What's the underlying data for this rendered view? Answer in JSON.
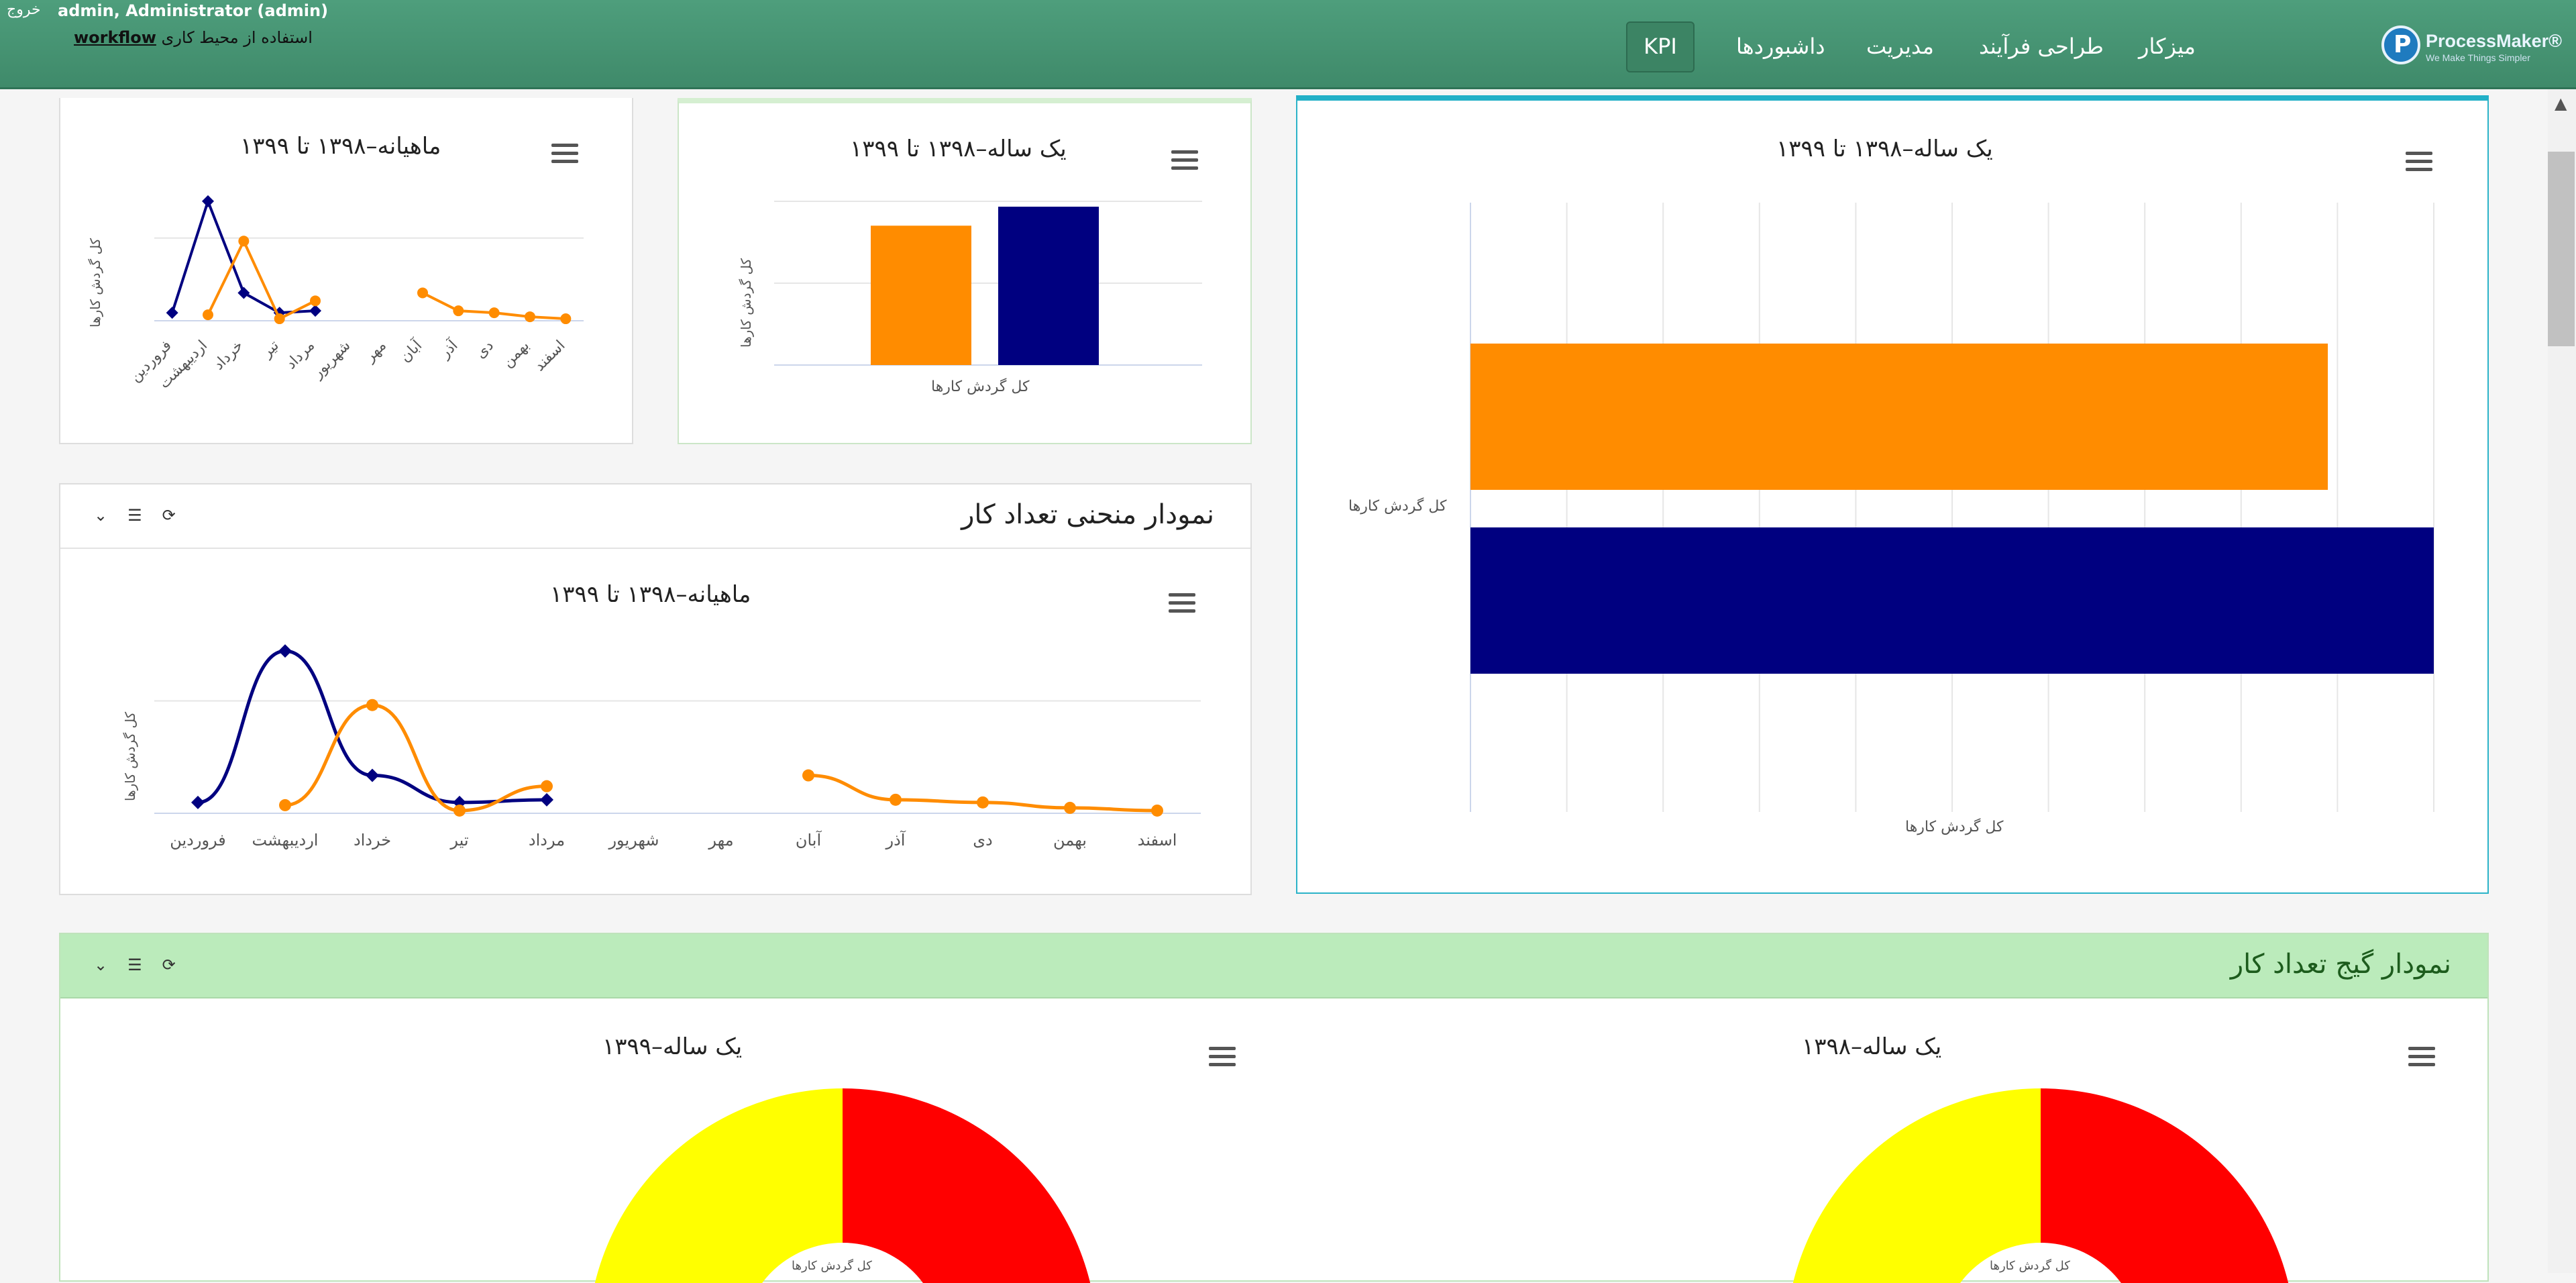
{
  "header": {
    "logo_text": "ProcessMaker®",
    "logo_tagline": "We Make Things Simpler",
    "nav": [
      "میزکار",
      "طراحی فرآیند",
      "مدیریت",
      "داشبوردها",
      "KPI"
    ],
    "logout": "خروج",
    "user": "admin, Administrator (admin)",
    "workspace_prefix": "استفاده از محیط کاری",
    "workspace": "workflow"
  },
  "panels": {
    "small_line": {
      "title": "ماهیانه–۱۳۹۸ تا ۱۳۹۹",
      "ylabel": "کل گردش کارها"
    },
    "small_bar": {
      "title": "یک ساله–۱۳۹۸ تا ۱۳۹۹",
      "ylabel": "کل گردش کارها",
      "xlabel": "کل گردش کارها"
    },
    "big_hbar": {
      "title": "یک ساله–۱۳۹۸ تا ۱۳۹۹",
      "ylabel": "کل گردش کارها",
      "xlabel": "کل گردش کارها"
    },
    "curve_panel": {
      "heading": "نمودار منحنی تعداد کار",
      "title": "ماهیانه–۱۳۹۸ تا ۱۳۹۹",
      "ylabel": "کل گردش کارها"
    },
    "gauge_panel": {
      "heading": "نمودار گیج تعداد کار",
      "left_title": "یک ساله–۱۳۹۹",
      "right_title": "یک ساله–۱۳۹۸",
      "gauge_label": "کل گردش کارها"
    }
  },
  "chart_data": [
    {
      "type": "line",
      "categories": [
        "فروردین",
        "اردیبهشت",
        "خرداد",
        "تیر",
        "مرداد",
        "شهریور",
        "مهر",
        "آبان",
        "آذر",
        "دی",
        "بهمن",
        "اسفند"
      ],
      "series": [
        {
          "color": "#000080",
          "values": [
            2,
            30,
            7,
            2,
            2.5,
            null,
            null,
            null,
            null,
            null,
            null,
            null
          ]
        },
        {
          "color": "#ff8c00",
          "values": [
            null,
            1.5,
            20,
            0.5,
            5,
            null,
            null,
            7,
            2.5,
            2,
            1,
            0.5
          ]
        }
      ],
      "ylabel": "کل گردش کارها"
    },
    {
      "type": "bar",
      "categories": [
        "کل گردش کارها"
      ],
      "series": [
        {
          "color": "#ff8c00",
          "values": [
            88
          ]
        },
        {
          "color": "#000080",
          "values": [
            100
          ]
        }
      ],
      "ylabel": "کل گردش کارها"
    },
    {
      "type": "bar",
      "orientation": "horizontal",
      "categories": [
        "کل گردش کارها"
      ],
      "series": [
        {
          "color": "#ff8c00",
          "values": [
            89
          ]
        },
        {
          "color": "#000080",
          "values": [
            100
          ]
        }
      ],
      "xlabel": "کل گردش کارها"
    },
    {
      "type": "line",
      "smooth": true,
      "categories": [
        "فروردین",
        "اردیبهشت",
        "خرداد",
        "تیر",
        "مرداد",
        "شهریور",
        "مهر",
        "آبان",
        "آذر",
        "دی",
        "بهمن",
        "اسفند"
      ],
      "series": [
        {
          "color": "#000080",
          "values": [
            2,
            30,
            7,
            2,
            2.5,
            null,
            null,
            null,
            null,
            null,
            null,
            null
          ]
        },
        {
          "color": "#ff8c00",
          "values": [
            null,
            1.5,
            20,
            0.5,
            5,
            null,
            null,
            7,
            2.5,
            2,
            1,
            0.5
          ]
        }
      ],
      "ylabel": "کل گردش کارها"
    }
  ],
  "gauges": {
    "colors": [
      "#ffff00",
      "#ff0000"
    ]
  }
}
